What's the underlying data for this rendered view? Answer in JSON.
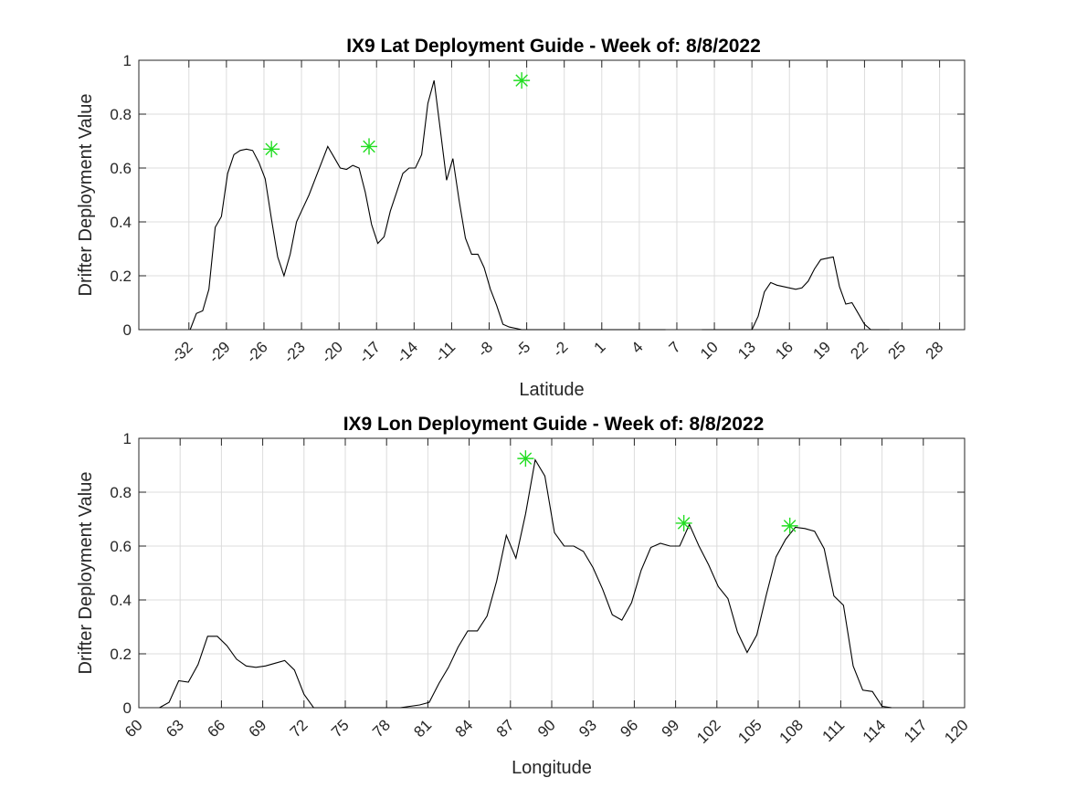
{
  "chart_data": [
    {
      "type": "line",
      "title": "IX9 Lat Deployment Guide - Week of: 8/8/2022",
      "xlabel": "Latitude",
      "ylabel": "Drifter Deployment Value",
      "xlim": [
        -36,
        30
      ],
      "ylim": [
        0,
        1
      ],
      "xticks": [
        -32,
        -29,
        -26,
        -23,
        -20,
        -17,
        -14,
        -11,
        -8,
        -5,
        -2,
        1,
        4,
        7,
        10,
        13,
        16,
        19,
        22,
        25,
        28
      ],
      "yticks": [
        0,
        0.2,
        0.4,
        0.6,
        0.8,
        1
      ],
      "xtick_rotation": 45,
      "grid": true,
      "line_color": "#000000",
      "marker_color": "#22dd22",
      "series": [
        {
          "x": [
            -31.9,
            -31.4,
            -30.9,
            -30.4,
            -29.9,
            -29.4,
            -28.9,
            -28.4,
            -27.9,
            -27.4,
            -26.9,
            -26.4,
            -25.9,
            -25.4,
            -24.9,
            -24.4,
            -23.9,
            -23.4,
            -22.9,
            -22.4,
            -21.9,
            -21.4,
            -20.9,
            -20.4,
            -19.9,
            -19.4,
            -18.9,
            -18.4,
            -17.9,
            -17.4,
            -16.9,
            -16.4,
            -15.9,
            -15.4,
            -14.9,
            -14.4,
            -13.9,
            -13.4,
            -12.9,
            -12.4,
            -11.9,
            -11.4,
            -10.9,
            -10.4,
            -9.9,
            -9.4,
            -8.9,
            -8.4,
            -7.9,
            -7.4,
            -6.9,
            -6.4,
            -5.9,
            -5.4,
            -4.9,
            -4.4,
            -3.9,
            -3.4,
            -2.9,
            -2.4,
            -1.9,
            -1.4,
            -0.9,
            -0.4,
            0.1,
            0.6,
            1.1,
            1.6,
            2.1,
            2.6,
            3.1,
            3.6,
            4.1,
            4.6,
            5.1,
            5.6,
            6.1
          ],
          "y": [
            0.0,
            0.06,
            0.07,
            0.15,
            0.38,
            0.42,
            0.58,
            0.65,
            0.665,
            0.67,
            0.665,
            0.62,
            0.56,
            0.41,
            0.27,
            0.2,
            0.28,
            0.4,
            0.45,
            0.5,
            0.56,
            0.62,
            0.68,
            0.64,
            0.6,
            0.595,
            0.61,
            0.6,
            0.51,
            0.39,
            0.32,
            0.345,
            0.44,
            0.51,
            0.58,
            0.6,
            0.6,
            0.65,
            0.84,
            0.925,
            0.74,
            0.555,
            0.635,
            0.48,
            0.34,
            0.28,
            0.28,
            0.23,
            0.15,
            0.09,
            0.02,
            0.01,
            0.005,
            0.0,
            0.0,
            0.0,
            0.0,
            0.0,
            0.0,
            0.0,
            0.0,
            0.0,
            0.0,
            0.0,
            0.0,
            0.0,
            0.0,
            0.0,
            0.0,
            0.0,
            0.0,
            0.0,
            0.0,
            0.0,
            0.0,
            0.0,
            0.0
          ]
        },
        {
          "x": [
            9.0,
            9.5,
            10.0,
            10.5,
            11.0,
            11.5,
            12.0,
            12.5,
            13.0,
            13.5,
            14.0,
            14.5,
            15.0,
            15.5,
            16.0,
            16.5,
            17.0,
            17.5,
            18.0,
            18.5,
            19.0,
            19.5,
            20.0,
            20.5,
            21.0,
            21.5,
            22.0,
            22.5,
            23.0,
            23.5,
            24.0
          ],
          "y": [
            0.0,
            0.0,
            0.0,
            0.0,
            0.0,
            0.0,
            0.0,
            0.0,
            0.0,
            0.05,
            0.14,
            0.175,
            0.165,
            0.16,
            0.155,
            0.15,
            0.155,
            0.18,
            0.225,
            0.26,
            0.265,
            0.27,
            0.16,
            0.095,
            0.1,
            0.06,
            0.02,
            0.0,
            0.0,
            0.0,
            0.0
          ]
        }
      ],
      "markers": [
        {
          "x": -25.4,
          "y": 0.67
        },
        {
          "x": -17.6,
          "y": 0.68
        },
        {
          "x": -5.4,
          "y": 0.925
        }
      ]
    },
    {
      "type": "line",
      "title": "IX9 Lon Deployment Guide - Week of: 8/8/2022",
      "xlabel": "Longitude",
      "ylabel": "Drifter Deployment Value",
      "xlim": [
        60,
        120
      ],
      "ylim": [
        0,
        1
      ],
      "xticks": [
        60,
        63,
        66,
        69,
        72,
        75,
        78,
        81,
        84,
        87,
        90,
        93,
        96,
        99,
        102,
        105,
        108,
        111,
        114,
        117,
        120
      ],
      "yticks": [
        0,
        0.2,
        0.4,
        0.6,
        0.8,
        1
      ],
      "xtick_rotation": 45,
      "grid": true,
      "line_color": "#000000",
      "marker_color": "#22dd22",
      "series": [
        {
          "x": [
            61.5,
            62.2,
            62.9,
            63.6,
            64.3,
            65.0,
            65.7,
            66.4,
            67.1,
            67.8,
            68.5,
            69.2,
            69.9,
            70.6,
            71.3,
            72.0,
            72.7,
            73.4,
            74.1,
            74.8,
            75.5,
            76.2,
            76.9,
            77.6,
            78.3,
            79.0,
            79.7,
            80.4,
            81.1,
            81.8,
            82.5,
            83.2,
            83.9,
            84.6,
            85.3,
            86.0,
            86.7,
            87.4,
            88.1,
            88.8,
            89.5,
            90.2,
            90.9,
            91.6,
            92.3,
            93.0,
            93.7,
            94.4,
            95.1,
            95.8,
            96.5,
            97.2,
            97.9,
            98.6,
            99.3,
            100.0,
            100.7,
            101.4,
            102.1,
            102.8,
            103.5,
            104.2,
            104.9,
            105.6,
            106.3,
            107.0,
            107.7,
            108.4,
            109.1,
            109.8,
            110.5,
            111.2,
            111.9,
            112.6,
            113.3,
            114.0,
            114.7
          ],
          "y": [
            0.0,
            0.02,
            0.1,
            0.095,
            0.16,
            0.265,
            0.265,
            0.23,
            0.18,
            0.155,
            0.15,
            0.155,
            0.165,
            0.175,
            0.14,
            0.05,
            0.0,
            0.0,
            0.0,
            0.0,
            0.0,
            0.0,
            0.0,
            0.0,
            0.0,
            0.0,
            0.005,
            0.01,
            0.02,
            0.09,
            0.15,
            0.225,
            0.285,
            0.285,
            0.34,
            0.47,
            0.64,
            0.555,
            0.72,
            0.92,
            0.86,
            0.65,
            0.6,
            0.6,
            0.58,
            0.52,
            0.44,
            0.345,
            0.325,
            0.39,
            0.51,
            0.595,
            0.61,
            0.6,
            0.6,
            0.68,
            0.6,
            0.53,
            0.45,
            0.405,
            0.28,
            0.205,
            0.27,
            0.42,
            0.56,
            0.625,
            0.67,
            0.665,
            0.655,
            0.59,
            0.415,
            0.38,
            0.155,
            0.065,
            0.06,
            0.005,
            0.0
          ]
        }
      ],
      "markers": [
        {
          "x": 88.1,
          "y": 0.925
        },
        {
          "x": 99.6,
          "y": 0.685
        },
        {
          "x": 107.3,
          "y": 0.675
        }
      ]
    }
  ]
}
